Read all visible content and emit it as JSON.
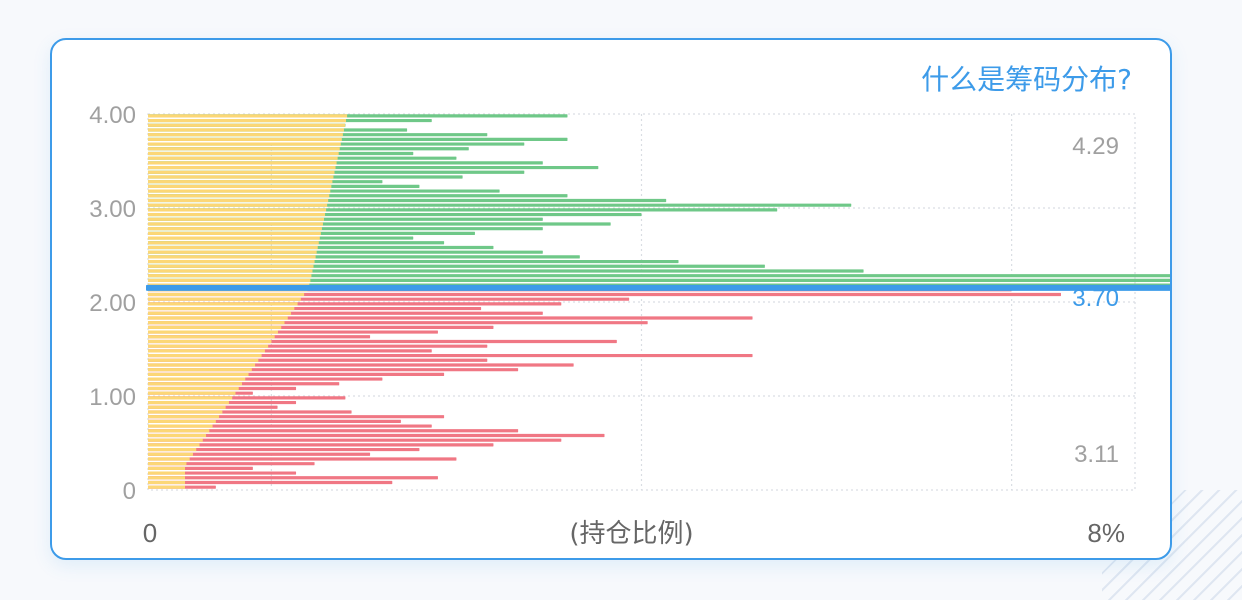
{
  "header": {
    "help_link": "什么是筹码分布?"
  },
  "colors": {
    "profit": "#6fc888",
    "loss": "#f07784",
    "cost_fill": "#fcd776",
    "current_line": "#3d9be9",
    "axis_text": "#a0a0a0",
    "border": "#3d9be9"
  },
  "chart_data": {
    "type": "bar",
    "orientation": "horizontal",
    "title": "",
    "xlabel": "(持仓比例)",
    "ylabel": "",
    "xlim": [
      0,
      8
    ],
    "ylim": [
      0,
      4
    ],
    "y_ticks": [
      "0",
      "1.00",
      "2.00",
      "3.00",
      "4.00"
    ],
    "x_tick_labels": {
      "left": "0",
      "right": "8%"
    },
    "current_price": 2.15,
    "price_labels": [
      {
        "text": "4.29",
        "position": "upper"
      },
      {
        "text": "3.70",
        "position": "middle",
        "highlight": true
      },
      {
        "text": "3.11",
        "position": "lower"
      }
    ],
    "bars": [
      {
        "p": 0.03,
        "v": 0.55
      },
      {
        "p": 0.08,
        "v": 1.98
      },
      {
        "p": 0.13,
        "v": 2.35
      },
      {
        "p": 0.18,
        "v": 1.2
      },
      {
        "p": 0.23,
        "v": 0.85
      },
      {
        "p": 0.28,
        "v": 1.35
      },
      {
        "p": 0.33,
        "v": 2.5
      },
      {
        "p": 0.38,
        "v": 1.8
      },
      {
        "p": 0.43,
        "v": 2.2
      },
      {
        "p": 0.48,
        "v": 2.8
      },
      {
        "p": 0.53,
        "v": 3.35
      },
      {
        "p": 0.58,
        "v": 3.7
      },
      {
        "p": 0.63,
        "v": 3.0
      },
      {
        "p": 0.68,
        "v": 2.3
      },
      {
        "p": 0.73,
        "v": 2.05
      },
      {
        "p": 0.78,
        "v": 2.4
      },
      {
        "p": 0.83,
        "v": 1.65
      },
      {
        "p": 0.88,
        "v": 1.05
      },
      {
        "p": 0.93,
        "v": 1.2
      },
      {
        "p": 0.98,
        "v": 1.6
      },
      {
        "p": 1.03,
        "v": 0.85
      },
      {
        "p": 1.08,
        "v": 1.2
      },
      {
        "p": 1.13,
        "v": 1.55
      },
      {
        "p": 1.18,
        "v": 1.9
      },
      {
        "p": 1.23,
        "v": 2.4
      },
      {
        "p": 1.28,
        "v": 3.0
      },
      {
        "p": 1.33,
        "v": 3.45
      },
      {
        "p": 1.38,
        "v": 2.75
      },
      {
        "p": 1.43,
        "v": 4.9
      },
      {
        "p": 1.48,
        "v": 2.3
      },
      {
        "p": 1.53,
        "v": 2.75
      },
      {
        "p": 1.58,
        "v": 3.8
      },
      {
        "p": 1.63,
        "v": 1.8
      },
      {
        "p": 1.68,
        "v": 2.35
      },
      {
        "p": 1.73,
        "v": 2.8
      },
      {
        "p": 1.78,
        "v": 4.05
      },
      {
        "p": 1.83,
        "v": 4.9
      },
      {
        "p": 1.88,
        "v": 3.2
      },
      {
        "p": 1.93,
        "v": 2.7
      },
      {
        "p": 1.98,
        "v": 3.35
      },
      {
        "p": 2.03,
        "v": 3.9
      },
      {
        "p": 2.08,
        "v": 7.4
      },
      {
        "p": 2.13,
        "v": 7.0
      },
      {
        "p": 2.18,
        "v": 9.2
      },
      {
        "p": 2.23,
        "v": 9.45
      },
      {
        "p": 2.28,
        "v": 8.8
      },
      {
        "p": 2.33,
        "v": 5.8
      },
      {
        "p": 2.38,
        "v": 5.0
      },
      {
        "p": 2.43,
        "v": 4.3
      },
      {
        "p": 2.48,
        "v": 3.5
      },
      {
        "p": 2.53,
        "v": 3.2
      },
      {
        "p": 2.58,
        "v": 2.8
      },
      {
        "p": 2.63,
        "v": 2.4
      },
      {
        "p": 2.68,
        "v": 2.15
      },
      {
        "p": 2.73,
        "v": 2.65
      },
      {
        "p": 2.78,
        "v": 3.2
      },
      {
        "p": 2.83,
        "v": 3.75
      },
      {
        "p": 2.88,
        "v": 3.2
      },
      {
        "p": 2.93,
        "v": 4.0
      },
      {
        "p": 2.98,
        "v": 5.1
      },
      {
        "p": 3.03,
        "v": 5.7
      },
      {
        "p": 3.08,
        "v": 4.2
      },
      {
        "p": 3.13,
        "v": 3.4
      },
      {
        "p": 3.18,
        "v": 2.85
      },
      {
        "p": 3.23,
        "v": 2.2
      },
      {
        "p": 3.28,
        "v": 1.9
      },
      {
        "p": 3.33,
        "v": 2.55
      },
      {
        "p": 3.38,
        "v": 3.05
      },
      {
        "p": 3.43,
        "v": 3.65
      },
      {
        "p": 3.48,
        "v": 3.2
      },
      {
        "p": 3.53,
        "v": 2.5
      },
      {
        "p": 3.58,
        "v": 2.15
      },
      {
        "p": 3.63,
        "v": 2.6
      },
      {
        "p": 3.68,
        "v": 3.05
      },
      {
        "p": 3.73,
        "v": 3.4
      },
      {
        "p": 3.78,
        "v": 2.75
      },
      {
        "p": 3.83,
        "v": 2.1
      },
      {
        "p": 3.88,
        "v": 1.6
      },
      {
        "p": 3.93,
        "v": 2.3
      },
      {
        "p": 3.98,
        "v": 3.4
      }
    ]
  }
}
